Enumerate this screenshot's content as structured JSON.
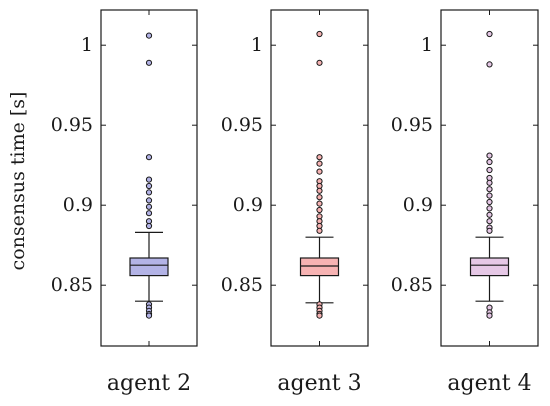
{
  "chart_data": {
    "type": "box",
    "ylabel": "consensus time [s]",
    "ylim": [
      0.812,
      1.022
    ],
    "yticks": [
      0.85,
      0.9,
      0.95,
      1
    ],
    "ytick_labels": [
      "0.85",
      "0.9",
      "0.95",
      "1"
    ],
    "grid": false,
    "panels": [
      {
        "category": "agent 2",
        "color": "#b3b3e6",
        "stats": {
          "whisker_low": 0.84,
          "q1": 0.856,
          "median": 0.8625,
          "q3": 0.867,
          "whisker_high": 0.883
        },
        "outliers": [
          1.006,
          0.989,
          0.93,
          0.916,
          0.912,
          0.908,
          0.903,
          0.899,
          0.895,
          0.89,
          0.887,
          0.838,
          0.836,
          0.834,
          0.832,
          0.831
        ]
      },
      {
        "category": "agent 3",
        "color": "#f7b3b3",
        "stats": {
          "whisker_low": 0.839,
          "q1": 0.856,
          "median": 0.862,
          "q3": 0.867,
          "whisker_high": 0.88
        },
        "outliers": [
          1.007,
          0.989,
          0.93,
          0.926,
          0.921,
          0.915,
          0.912,
          0.909,
          0.905,
          0.901,
          0.897,
          0.893,
          0.89,
          0.887,
          0.884,
          0.838,
          0.836,
          0.834,
          0.832,
          0.831
        ]
      },
      {
        "category": "agent 4",
        "color": "#e6c8e6",
        "stats": {
          "whisker_low": 0.84,
          "q1": 0.856,
          "median": 0.8625,
          "q3": 0.867,
          "whisker_high": 0.88
        },
        "outliers": [
          1.007,
          0.988,
          0.931,
          0.927,
          0.922,
          0.917,
          0.914,
          0.91,
          0.906,
          0.902,
          0.898,
          0.894,
          0.89,
          0.886,
          0.884,
          0.836,
          0.833,
          0.831
        ]
      }
    ]
  }
}
